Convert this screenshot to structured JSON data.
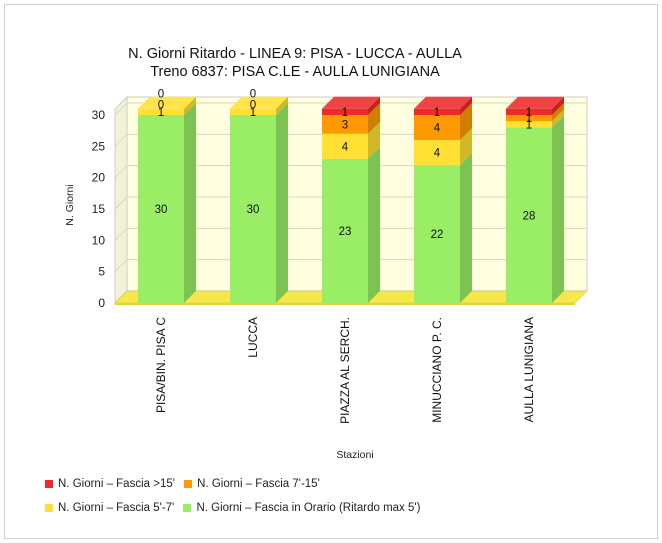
{
  "chart_data": {
    "type": "bar",
    "stacked": true,
    "three_d": true,
    "title": "N. Giorni Ritardo - LINEA 9: PISA - LUCCA - AULLA",
    "subtitle": "Treno 6837: PISA C.LE - AULLA LUNIGIANA",
    "xlabel": "Stazioni",
    "ylabel": "N. Giorni",
    "ylim": [
      0,
      30
    ],
    "yticks": [
      "0",
      "5",
      "10",
      "15",
      "20",
      "25",
      "30"
    ],
    "categories": [
      "PISA/BIN. PISA C",
      "LUCCA",
      "PIAZZA AL SERCH.",
      "MINUCCIANO P. C.",
      "AULLA LUNIGIANA"
    ],
    "series": [
      {
        "name": "N. Giorni – Fascia in Orario (Ritardo max 5')",
        "color": "#99ee66",
        "values": [
          30,
          30,
          23,
          22,
          28
        ]
      },
      {
        "name": "N. Giorni – Fascia 5'-7'",
        "color": "#ffe033",
        "values": [
          1,
          1,
          4,
          4,
          1
        ]
      },
      {
        "name": "N. Giorni – Fascia 7'-15'",
        "color": "#ff9900",
        "values": [
          0,
          0,
          3,
          4,
          1
        ]
      },
      {
        "name": "N. Giorni – Fascia >15'",
        "color": "#ee2a2a",
        "values": [
          0,
          0,
          1,
          1,
          1
        ]
      }
    ],
    "legend_position": "bottom",
    "grid": true
  },
  "legend": {
    "row1": [
      {
        "label": "N. Giorni – Fascia >15'",
        "color": "#ee2a2a"
      },
      {
        "label": "N. Giorni – Fascia 7'-15'",
        "color": "#ff9900"
      }
    ],
    "row2": [
      {
        "label": "N. Giorni – Fascia 5'-7'",
        "color": "#ffe033"
      },
      {
        "label": "N. Giorni – Fascia in Orario (Ritardo max 5')",
        "color": "#99ee66"
      }
    ]
  }
}
